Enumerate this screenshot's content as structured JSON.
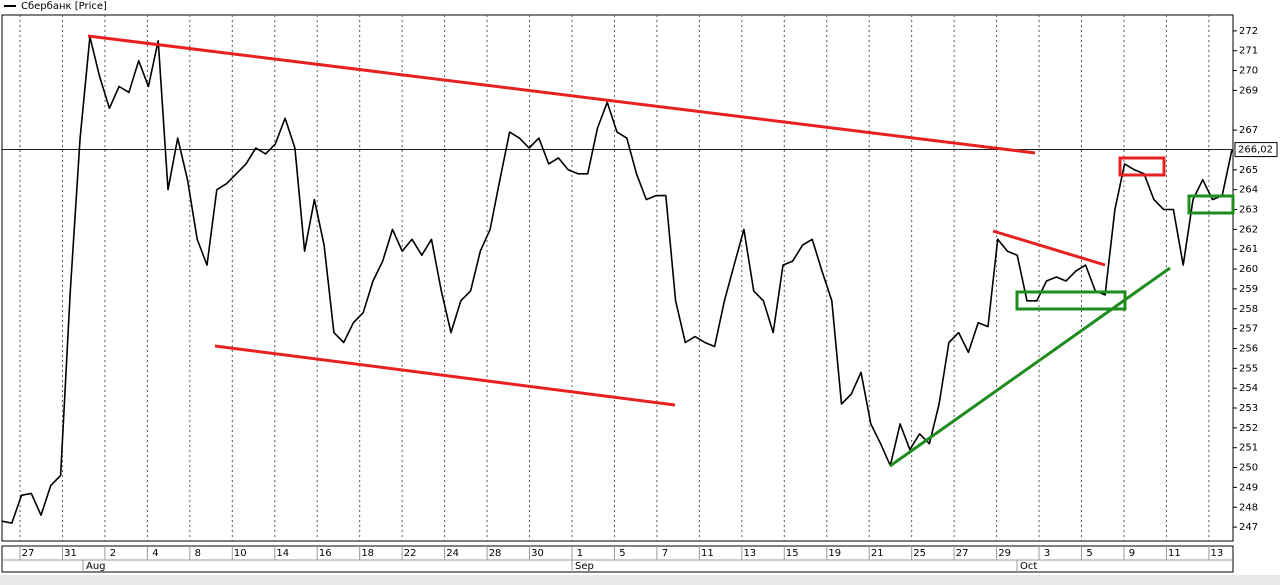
{
  "chart_data": {
    "type": "line",
    "series": [
      {
        "name": "Сбербанк [Price]",
        "color": "#000000",
        "values": [
          247.3,
          247.2,
          248.6,
          248.7,
          247.6,
          249.1,
          249.6,
          258.9,
          266.6,
          271.7,
          269.7,
          268.1,
          269.2,
          268.9,
          270.5,
          269.2,
          271.5,
          264.0,
          266.6,
          264.5,
          261.5,
          260.2,
          264.0,
          264.3,
          264.8,
          265.3,
          266.1,
          265.8,
          266.3,
          267.6,
          266.1,
          260.9,
          263.5,
          261.2,
          256.8,
          256.3,
          257.3,
          257.8,
          259.4,
          260.4,
          262.0,
          260.9,
          261.5,
          260.7,
          261.5,
          258.9,
          256.8,
          258.4,
          258.9,
          260.9,
          262.0,
          264.5,
          266.9,
          266.6,
          266.1,
          266.6,
          265.3,
          265.6,
          265.0,
          264.8,
          264.8,
          267.1,
          268.4,
          266.9,
          266.6,
          264.8,
          263.5,
          263.7,
          263.7,
          258.4,
          256.3,
          256.6,
          256.3,
          256.1,
          258.4,
          260.2,
          262.0,
          258.9,
          258.4,
          256.8,
          260.2,
          260.4,
          261.2,
          261.5,
          259.9,
          258.4,
          253.2,
          253.7,
          254.8,
          252.2,
          251.2,
          250.1,
          252.2,
          250.9,
          251.7,
          251.2,
          253.2,
          256.3,
          256.8,
          255.8,
          257.3,
          257.1,
          261.5,
          260.9,
          260.7,
          258.4,
          258.4,
          259.4,
          259.6,
          259.4,
          259.9,
          260.2,
          258.9,
          258.7,
          263.0,
          265.3,
          265.0,
          264.8,
          263.5,
          263.0,
          263.0,
          260.2,
          263.5,
          264.5,
          263.5,
          263.7,
          266.02
        ]
      }
    ],
    "xticks": [
      "27",
      "31",
      "2",
      "4",
      "8",
      "10",
      "14",
      "16",
      "18",
      "22",
      "24",
      "28",
      "30",
      "1",
      "5",
      "7",
      "11",
      "13",
      "15",
      "19",
      "21",
      "25",
      "27",
      "29",
      "3",
      "5",
      "9",
      "11",
      "13"
    ],
    "months": [
      "Aug",
      "Sep",
      "Oct"
    ],
    "ylim": [
      246.3,
      272.8
    ],
    "yticks": [
      247,
      248,
      249,
      250,
      251,
      252,
      253,
      254,
      255,
      256,
      257,
      258,
      259,
      260,
      261,
      262,
      263,
      264,
      265,
      267,
      269,
      270,
      271,
      272
    ],
    "last_value": {
      "value": 266.02,
      "label": "266,02"
    }
  }
}
